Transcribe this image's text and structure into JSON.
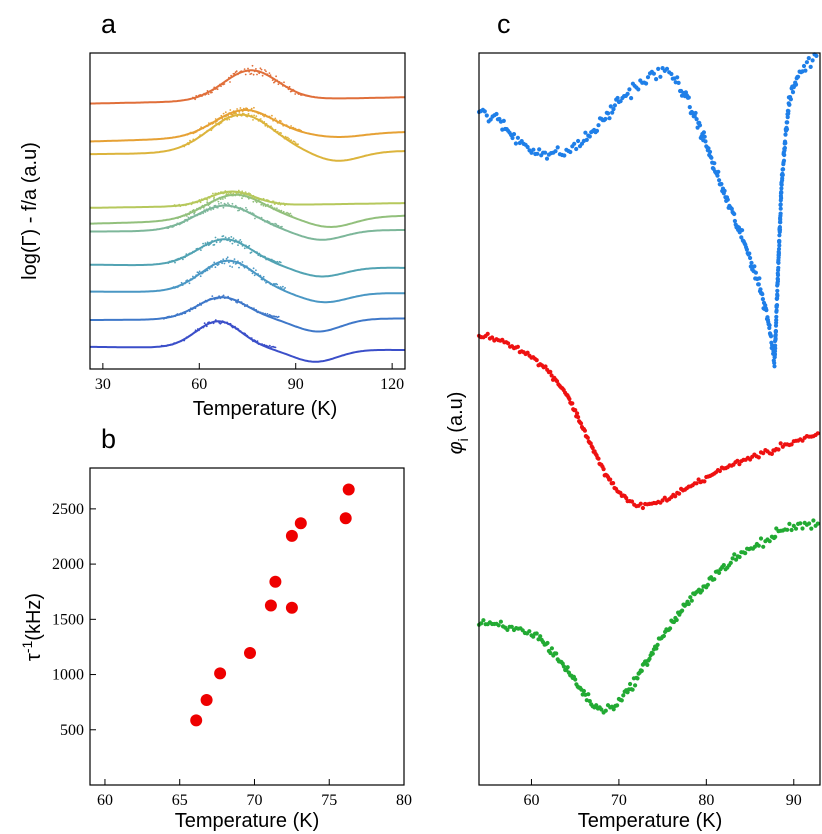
{
  "chart_data": [
    {
      "panel": "a",
      "type": "line",
      "xlabel": "Temperature (K)",
      "ylabel": "log(Γ) - f/a (a.u)",
      "xlim": [
        26,
        124
      ],
      "ylim": [
        0,
        100
      ],
      "xticks": [
        "30",
        "60",
        "90",
        "120"
      ],
      "xtick_values": [
        30,
        60,
        90,
        120
      ],
      "y_tick_labels": "none",
      "series": [
        {
          "color": "#3b4fc9",
          "base": 7,
          "amp": 8.5,
          "center": 66,
          "width": 10,
          "end": 6,
          "dip": 4,
          "noise": 0.5
        },
        {
          "color": "#3f78c9",
          "base": 15.5,
          "amp": 7,
          "center": 67,
          "width": 11,
          "end": 16,
          "dip": 4,
          "noise": 0.4
        },
        {
          "color": "#4a97c4",
          "base": 24.5,
          "amp": 10,
          "center": 69,
          "width": 12,
          "end": 24,
          "dip": 3,
          "noise": 0.8
        },
        {
          "color": "#52a3b3",
          "base": 33,
          "amp": 8.5,
          "center": 68,
          "width": 12,
          "end": 32,
          "dip": 3,
          "noise": 0.8
        },
        {
          "color": "#7db79a",
          "base": 43.5,
          "amp": 8,
          "center": 68,
          "width": 13,
          "end": 44,
          "dip": 3,
          "noise": 0.6
        },
        {
          "color": "#92c07c",
          "base": 46,
          "amp": 8,
          "center": 71,
          "width": 13,
          "end": 48.5,
          "dip": 3,
          "noise": 0.6
        },
        {
          "color": "#b6c85c",
          "base": 51,
          "amp": 4.5,
          "center": 70,
          "width": 10,
          "end": 52.5,
          "dip": 0,
          "noise": 0.5
        },
        {
          "color": "#dcb43c",
          "base": 68,
          "amp": 12,
          "center": 73,
          "width": 14,
          "end": 69,
          "dip": 3,
          "noise": 0.6
        },
        {
          "color": "#e6a135",
          "base": 72,
          "amp": 8.5,
          "center": 74,
          "width": 13,
          "end": 75,
          "dip": 1,
          "noise": 0.6
        },
        {
          "color": "#e06f3a",
          "base": 84,
          "amp": 9.5,
          "center": 76,
          "width": 12,
          "end": 86,
          "dip": 0,
          "noise": 1.0
        }
      ]
    },
    {
      "panel": "b",
      "type": "scatter",
      "xlabel": "Temperature (K)",
      "ylabel": "τ-1(kHz)",
      "xlim": [
        59,
        80
      ],
      "ylim": [
        0,
        2870
      ],
      "xticks": [
        60,
        65,
        70,
        75,
        80
      ],
      "yticks": [
        500,
        1000,
        1500,
        2000,
        2500
      ],
      "color": "#ee0000",
      "points": [
        {
          "x": 66.1,
          "y": 585
        },
        {
          "x": 66.8,
          "y": 770
        },
        {
          "x": 67.7,
          "y": 1010
        },
        {
          "x": 69.7,
          "y": 1195
        },
        {
          "x": 71.1,
          "y": 1625
        },
        {
          "x": 71.4,
          "y": 1840
        },
        {
          "x": 72.5,
          "y": 1605
        },
        {
          "x": 72.5,
          "y": 2255
        },
        {
          "x": 73.1,
          "y": 2370
        },
        {
          "x": 76.1,
          "y": 2415
        },
        {
          "x": 76.3,
          "y": 2675
        }
      ]
    },
    {
      "panel": "c",
      "type": "scatter",
      "xlabel": "Temperature (K)",
      "ylabel": "φi (a.u)",
      "xlim": [
        54,
        93
      ],
      "ylim": [
        0,
        100
      ],
      "xticks": [
        60,
        70,
        80,
        90
      ],
      "y_tick_labels": "none",
      "series": [
        {
          "color": "#1f7fe8",
          "points": [
            [
              54,
              92
            ],
            [
              56,
              91
            ],
            [
              58,
              88.5
            ],
            [
              60,
              87
            ],
            [
              62,
              86
            ],
            [
              64,
              86.5
            ],
            [
              66,
              88
            ],
            [
              68,
              90.5
            ],
            [
              70,
              93.5
            ],
            [
              72,
              95.5
            ],
            [
              74,
              97
            ],
            [
              75,
              97.5
            ],
            [
              76,
              97
            ],
            [
              77,
              95.5
            ],
            [
              78,
              93
            ],
            [
              79,
              90.5
            ],
            [
              80,
              87.5
            ],
            [
              81,
              84
            ],
            [
              82,
              81
            ],
            [
              83,
              78
            ],
            [
              84,
              75
            ],
            [
              85,
              72
            ],
            [
              86,
              68.5
            ],
            [
              87,
              64
            ],
            [
              87.8,
              58
            ],
            [
              88.1,
              67
            ],
            [
              88.6,
              82
            ],
            [
              89,
              88
            ],
            [
              89.5,
              93.5
            ],
            [
              90.5,
              97
            ],
            [
              91.5,
              98.5
            ],
            [
              92.8,
              99.5
            ]
          ],
          "scatter": 1.4
        },
        {
          "color": "#ee1111",
          "points": [
            [
              54,
              61.5
            ],
            [
              56,
              61
            ],
            [
              58,
              60
            ],
            [
              60,
              58.5
            ],
            [
              62,
              56.5
            ],
            [
              64,
              53.5
            ],
            [
              65,
              51
            ],
            [
              66,
              48.5
            ],
            [
              67,
              46
            ],
            [
              68,
              43.5
            ],
            [
              69,
              41.5
            ],
            [
              70,
              40
            ],
            [
              71,
              38.8
            ],
            [
              72,
              38.3
            ],
            [
              73,
              38.2
            ],
            [
              74,
              38.4
            ],
            [
              75,
              38.8
            ],
            [
              76,
              39.4
            ],
            [
              78,
              40.7
            ],
            [
              80,
              42
            ],
            [
              82,
              43.2
            ],
            [
              84,
              44.3
            ],
            [
              86,
              45.1
            ],
            [
              87.5,
              45.5
            ],
            [
              88,
              46
            ],
            [
              89,
              46.5
            ],
            [
              91,
              47.3
            ],
            [
              93,
              48
            ]
          ],
          "scatter": 0.6
        },
        {
          "color": "#22aa33",
          "points": [
            [
              54,
              22
            ],
            [
              56,
              21.8
            ],
            [
              58,
              21.3
            ],
            [
              60,
              20.8
            ],
            [
              61,
              20
            ],
            [
              62,
              18.8
            ],
            [
              63,
              17.4
            ],
            [
              64,
              15.8
            ],
            [
              65,
              14.2
            ],
            [
              66,
              12.5
            ],
            [
              67,
              11
            ],
            [
              68,
              10.2
            ],
            [
              69,
              10.5
            ],
            [
              70,
              11.5
            ],
            [
              71,
              12.8
            ],
            [
              72,
              14.5
            ],
            [
              73,
              16.5
            ],
            [
              74,
              18.5
            ],
            [
              75,
              20.3
            ],
            [
              76,
              22
            ],
            [
              78,
              25
            ],
            [
              80,
              27.6
            ],
            [
              82,
              29.8
            ],
            [
              84,
              31.5
            ],
            [
              86,
              32.9
            ],
            [
              87.5,
              33.6
            ],
            [
              88,
              34.5
            ],
            [
              89,
              35
            ],
            [
              91,
              35.5
            ],
            [
              93,
              35.8
            ]
          ],
          "scatter": 1.0
        }
      ]
    }
  ],
  "panel_labels": {
    "a": "a",
    "b": "b",
    "c": "c"
  }
}
